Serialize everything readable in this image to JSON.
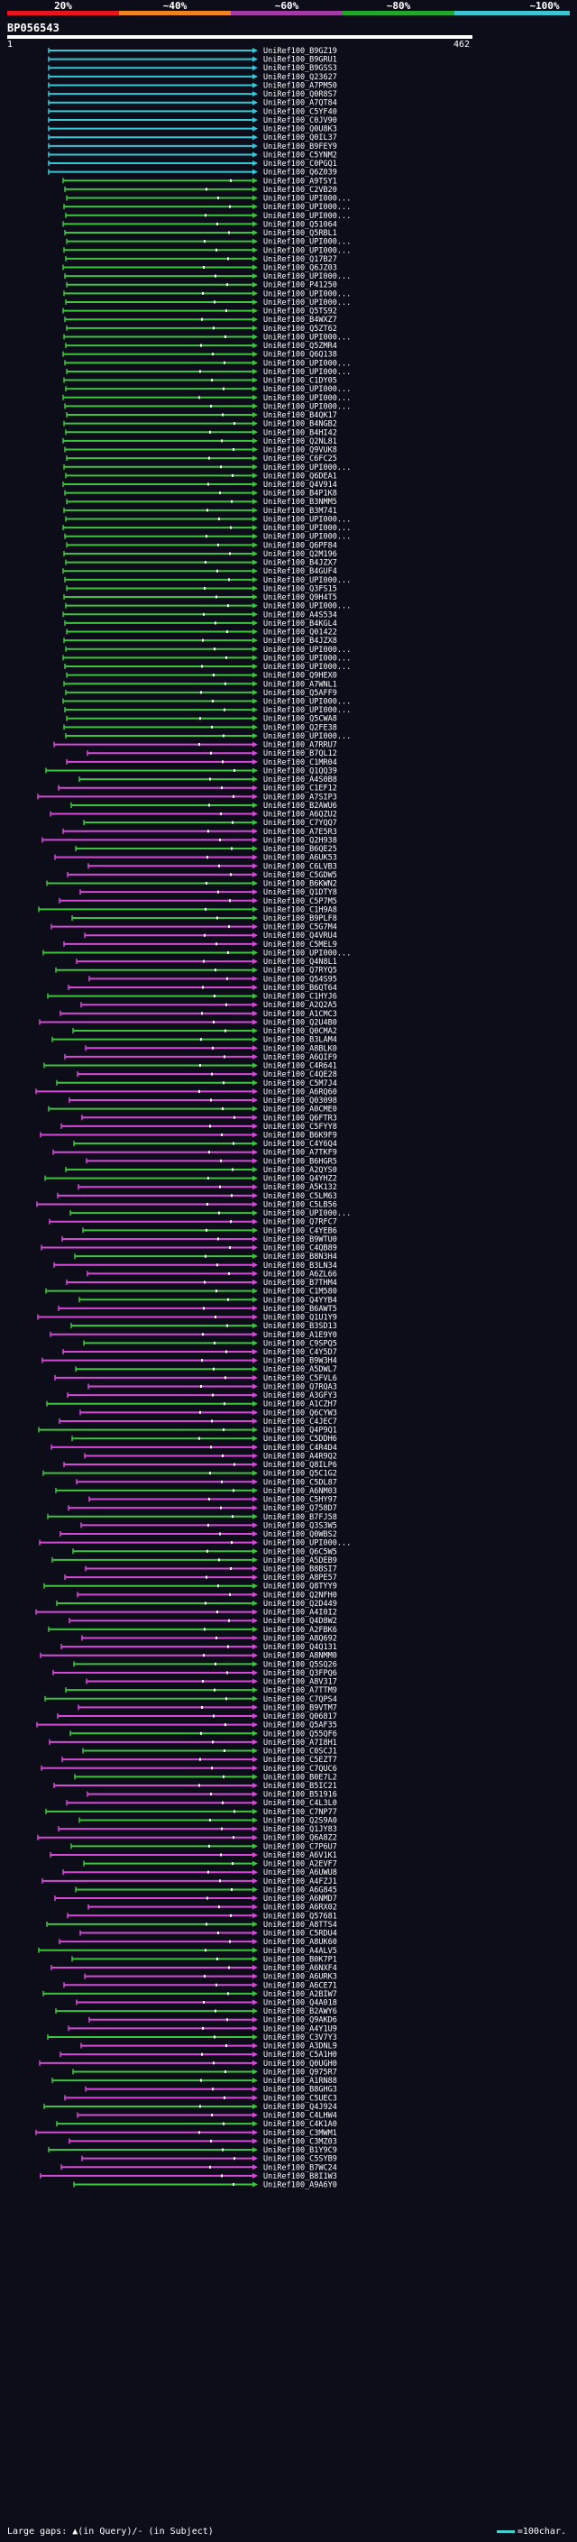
{
  "scale": {
    "labels": [
      "20%",
      "~40%",
      "~60%",
      "~80%",
      "~100%"
    ],
    "colors": [
      "#e8151f",
      "#f08421",
      "#a13aa5",
      "#22a62c",
      "#3ec5d3"
    ]
  },
  "query": {
    "name": "BP056543",
    "start": "1",
    "end": "462"
  },
  "hit_colors": {
    "cyan": "#35c8d6",
    "green": "#3cc43c",
    "magenta": "#d649d6",
    "marker": "#ffffff"
  },
  "hits": [
    "UniRef100_B9GZ19",
    "UniRef100_B9GRU1",
    "UniRef100_B9GSS3",
    "UniRef100_Q23627",
    "UniRef100_A7PM50",
    "UniRef100_Q0R8S7",
    "UniRef100_A7QT84",
    "UniRef100_C5YF40",
    "UniRef100_C0JV90",
    "UniRef100_Q0U8K3",
    "UniRef100_Q0IL37",
    "UniRef100_B9FEY9",
    "UniRef100_C5YNM2",
    "UniRef100_C0PGQ1",
    "UniRef100_Q6Z039",
    "UniRef100_A9TSY1",
    "UniRef100_C2VB20",
    "UniRef100_UPI000...",
    "UniRef100_UPI000...",
    "UniRef100_UPI000...",
    "UniRef100_Q51064",
    "UniRef100_Q5RBL1",
    "UniRef100_UPI000...",
    "UniRef100_UPI000...",
    "UniRef100_Q17B27",
    "UniRef100_Q6JZ03",
    "UniRef100_UPI000...",
    "UniRef100_P41250",
    "UniRef100_UPI000...",
    "UniRef100_UPI000...",
    "UniRef100_Q5TS92",
    "UniRef100_B4WXZ7",
    "UniRef100_Q5ZT62",
    "UniRef100_UPI000...",
    "UniRef100_Q5ZMR4",
    "UniRef100_Q6Q138",
    "UniRef100_UPI000...",
    "UniRef100_UPI000...",
    "UniRef100_C1DY05",
    "UniRef100_UPI000...",
    "UniRef100_UPI000...",
    "UniRef100_UPI000...",
    "UniRef100_B4QK17",
    "UniRef100_B4NGB2",
    "UniRef100_B4HI42",
    "UniRef100_Q2NL81",
    "UniRef100_Q9VUK8",
    "UniRef100_C6FC25",
    "UniRef100_UPI000...",
    "UniRef100_Q6DEA1",
    "UniRef100_Q4V914",
    "UniRef100_B4P1K8",
    "UniRef100_B3NMM5",
    "UniRef100_B3M741",
    "UniRef100_UPI000...",
    "UniRef100_UPI000...",
    "UniRef100_UPI000...",
    "UniRef100_Q6PF84",
    "UniRef100_Q2M196",
    "UniRef100_B4JZX7",
    "UniRef100_B4GUF4",
    "UniRef100_UPI000...",
    "UniRef100_Q3FS15",
    "UniRef100_Q9H4T5",
    "UniRef100_UPI000...",
    "UniRef100_A4S534",
    "UniRef100_B4KGL4",
    "UniRef100_Q01422",
    "UniRef100_B4JZX8",
    "UniRef100_UPI000...",
    "UniRef100_UPI000...",
    "UniRef100_UPI000...",
    "UniRef100_Q9HEX0",
    "UniRef100_A7WNL1",
    "UniRef100_Q5AFF9",
    "UniRef100_UPI000...",
    "UniRef100_UPI000...",
    "UniRef100_Q5CWA8",
    "UniRef100_Q2FE38",
    "UniRef100_UPI000...",
    "UniRef100_A7RRU7",
    "UniRef100_B7QL12",
    "UniRef100_C1MR04",
    "UniRef100_Q1QQ39",
    "UniRef100_A4S0B8",
    "UniRef100_C1EF12",
    "UniRef100_A7SIP3",
    "UniRef100_B2AWU6",
    "UniRef100_A6QZU2",
    "UniRef100_C7YQQ7",
    "UniRef100_A7E5R3",
    "UniRef100_Q2H938",
    "UniRef100_B6QE25",
    "UniRef100_A6UK53",
    "UniRef100_C6LVB3",
    "UniRef100_C5GDW5",
    "UniRef100_B6KWN2",
    "UniRef100_Q1DTY8",
    "UniRef100_C5P7M5",
    "UniRef100_C1H9A8",
    "UniRef100_B9PLF8",
    "UniRef100_C5G7M4",
    "UniRef100_Q4VRU4",
    "UniRef100_C5MEL9",
    "UniRef100_UPI000...",
    "UniRef100_Q4N8L1",
    "UniRef100_Q7RYQ5",
    "UniRef100_Q54S95",
    "UniRef100_B6QT64",
    "UniRef100_C1HYJ6",
    "UniRef100_A2Q2A5",
    "UniRef100_A1CMC3",
    "UniRef100_Q2U4B0",
    "UniRef100_Q0CMA2",
    "UniRef100_B3LAM4",
    "UniRef100_A8BLK0",
    "UniRef100_A6QIF9",
    "UniRef100_C4R641",
    "UniRef100_C4QE28",
    "UniRef100_C5M7J4",
    "UniRef100_A6RQ60",
    "UniRef100_Q03098",
    "UniRef100_A0CME0",
    "UniRef100_Q6FTR3",
    "UniRef100_C5FYY8",
    "UniRef100_B6K9F9",
    "UniRef100_C4Y6Q4",
    "UniRef100_A7TKF9",
    "UniRef100_B6HGR5",
    "UniRef100_A2QYS0",
    "UniRef100_Q4YHZ2",
    "UniRef100_A5K132",
    "UniRef100_C5LM63",
    "UniRef100_C5LB56",
    "UniRef100_UPI000...",
    "UniRef100_Q7RFC7",
    "UniRef100_C4YEB6",
    "UniRef100_B9WTU0",
    "UniRef100_C4QB89",
    "UniRef100_B8N3H4",
    "UniRef100_B3LN34",
    "UniRef100_A6ZL66",
    "UniRef100_B7THM4",
    "UniRef100_C1M580",
    "UniRef100_Q4YYB4",
    "UniRef100_B6AWT5",
    "UniRef100_Q1U1Y9",
    "UniRef100_B3SD13",
    "UniRef100_A1E9Y0",
    "UniRef100_C9SPQ5",
    "UniRef100_C4Y5D7",
    "UniRef100_B9W3H4",
    "UniRef100_A5DWL7",
    "UniRef100_C5FVL6",
    "UniRef100_Q7RQA3",
    "UniRef100_A3GFY3",
    "UniRef100_A1CZH7",
    "UniRef100_Q6CYW3",
    "UniRef100_C4JEC7",
    "UniRef100_Q4P9Q1",
    "UniRef100_C5DDH6",
    "UniRef100_C4R4D4",
    "UniRef100_A4R9Q2",
    "UniRef100_Q8ILP6",
    "UniRef100_Q5C1G2",
    "UniRef100_C5DL87",
    "UniRef100_A6NM03",
    "UniRef100_C5HY97",
    "UniRef100_Q758D7",
    "UniRef100_B7FJ58",
    "UniRef100_Q3S3W5",
    "UniRef100_Q0WBS2",
    "UniRef100_UPI000...",
    "UniRef100_Q6C5W5",
    "UniRef100_A5DEB9",
    "UniRef100_B8BSI7",
    "UniRef100_A8PE57",
    "UniRef100_Q8TYY9",
    "UniRef100_Q2NFH0",
    "UniRef100_Q2D449",
    "UniRef100_A4I0I2",
    "UniRef100_Q4D8W2",
    "UniRef100_A2FBK6",
    "UniRef100_A8Q692",
    "UniRef100_Q4Q131",
    "UniRef100_A8NMM0",
    "UniRef100_Q5SQ26",
    "UniRef100_Q3FPQ6",
    "UniRef100_A8V317",
    "UniRef100_A7TTM9",
    "UniRef100_C7QPS4",
    "UniRef100_B9VTM7",
    "UniRef100_Q06817",
    "UniRef100_Q5AF35",
    "UniRef100_Q55QF6",
    "UniRef100_A7I8H1",
    "UniRef100_C0SCJ1",
    "UniRef100_C5EZT7",
    "UniRef100_C7QUC6",
    "UniRef100_B0E7L2",
    "UniRef100_B5IC21",
    "UniRef100_B51916",
    "UniRef100_C4L3L0",
    "UniRef100_C7NP77",
    "UniRef100_Q2S9A0",
    "UniRef100_Q1JY83",
    "UniRef100_Q6A8Z2",
    "UniRef100_C7P6U7",
    "UniRef100_A6V1K1",
    "UniRef100_A2EVF7",
    "UniRef100_A6UWU8",
    "UniRef100_A4FZJ1",
    "UniRef100_A6G845",
    "UniRef100_A6NMD7",
    "UniRef100_A6RX02",
    "UniRef100_Q57681",
    "UniRef100_A8TTS4",
    "UniRef100_C5RDU4",
    "UniRef100_A8UK60",
    "UniRef100_A4ALV5",
    "UniRef100_B0K7P1",
    "UniRef100_A6NXF4",
    "UniRef100_A6URK3",
    "UniRef100_A6CE71",
    "UniRef100_A2BIW7",
    "UniRef100_Q4A018",
    "UniRef100_B2AWY6",
    "UniRef100_Q9AKD6",
    "UniRef100_A4Y1U9",
    "UniRef100_C3V7Y3",
    "UniRef100_A3DNL9",
    "UniRef100_C5A1H0",
    "UniRef100_Q0UGH0",
    "UniRef100_Q975R7",
    "UniRef100_A1RN88",
    "UniRef100_B8GHG3",
    "UniRef100_C5UEC3",
    "UniRef100_Q4J924",
    "UniRef100_C4LHW4",
    "UniRef100_C4K1A0",
    "UniRef100_C3MWM1",
    "UniRef100_C3MZ03",
    "UniRef100_B1Y9C9",
    "UniRef100_C5SYB9",
    "UniRef100_B7WC24",
    "UniRef100_B8I1W3",
    "UniRef100_A9A6Y0"
  ],
  "footer": {
    "left": "Large gaps: ▲(in Query)/- (in Subject)",
    "right": "=100char."
  }
}
